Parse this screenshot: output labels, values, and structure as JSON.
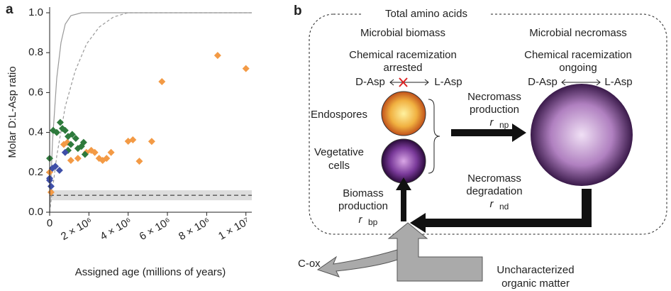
{
  "chart_data": {
    "type": "scatter",
    "panel_label": "a",
    "ylabel": "Molar D:L-Asp ratio",
    "xlabel": "Assigned age (millions of years)",
    "xlim": [
      0,
      10300000
    ],
    "ylim": [
      0,
      1.0
    ],
    "xticks": [
      0,
      {
        "value": 2000000,
        "label": "2 × 10⁶"
      },
      {
        "value": 4000000,
        "label": "4 × 10⁶"
      },
      {
        "value": 6000000,
        "label": "6 × 10⁶"
      },
      {
        "value": 8000000,
        "label": "8 × 10⁶"
      },
      {
        "value": 10000000,
        "label": "1 × 10⁷"
      }
    ],
    "yticks": [
      {
        "value": 0,
        "label": "0.0"
      },
      0.2,
      0.4,
      0.6,
      0.8,
      {
        "value": 1.0,
        "label": "1.0"
      }
    ],
    "reference_line": 0.085,
    "reference_band": [
      0.06,
      0.11
    ],
    "series": [
      {
        "color": "#f39a45",
        "x": [
          8560000,
          10000000,
          5720000,
          5200000,
          4570000,
          4240000,
          4000000,
          1870000,
          2120000,
          2300000,
          2520000,
          2700000,
          2900000,
          3130000,
          1440000,
          1080000,
          900000,
          720000,
          0,
          70000
        ],
        "values": [
          0.786,
          0.72,
          0.655,
          0.355,
          0.256,
          0.363,
          0.356,
          0.3,
          0.31,
          0.3,
          0.27,
          0.26,
          0.27,
          0.3,
          0.27,
          0.26,
          0.35,
          0.34,
          0.2,
          0.1
        ]
      },
      {
        "color": "#2e7a3c",
        "x": [
          0,
          180000,
          360000,
          540000,
          650000,
          790000,
          940000,
          1080000,
          1150000,
          1330000,
          1440000,
          1620000,
          1730000,
          1800000,
          940000
        ],
        "values": [
          0.27,
          0.41,
          0.4,
          0.45,
          0.42,
          0.41,
          0.38,
          0.34,
          0.39,
          0.37,
          0.32,
          0.33,
          0.35,
          0.29,
          0.31
        ]
      },
      {
        "color": "#3f4fa8",
        "x": [
          0,
          70000,
          140000,
          290000,
          500000,
          790000,
          0
        ],
        "values": [
          0.16,
          0.13,
          0.22,
          0.23,
          0.21,
          0.3,
          0.17
        ]
      }
    ]
  },
  "diagram": {
    "panel_label": "b",
    "title": "Total amino acids",
    "biomass": {
      "heading": "Microbial biomass",
      "state": [
        "Chemical racemization",
        "arrested"
      ],
      "left": "D-Asp",
      "right": "L-Asp",
      "endospores": "Endospores",
      "vegetative": [
        "Vegetative",
        "cells"
      ]
    },
    "necromass": {
      "heading": "Microbial necromass",
      "state": [
        "Chemical racemization",
        "ongoing"
      ],
      "left": "D-Asp",
      "right": "L-Asp"
    },
    "necromass_production": {
      "lines": [
        "Necromass",
        "production"
      ],
      "symbol": "r",
      "subscript": "np"
    },
    "necromass_degradation": {
      "lines": [
        "Necromass",
        "degradation"
      ],
      "symbol": "r",
      "subscript": "nd"
    },
    "biomass_production": {
      "lines": [
        "Biomass",
        "production"
      ],
      "symbol": "r",
      "subscript": "bp"
    },
    "cox": "C-ox",
    "organic_matter": [
      "Uncharacterized",
      "organic matter"
    ]
  }
}
